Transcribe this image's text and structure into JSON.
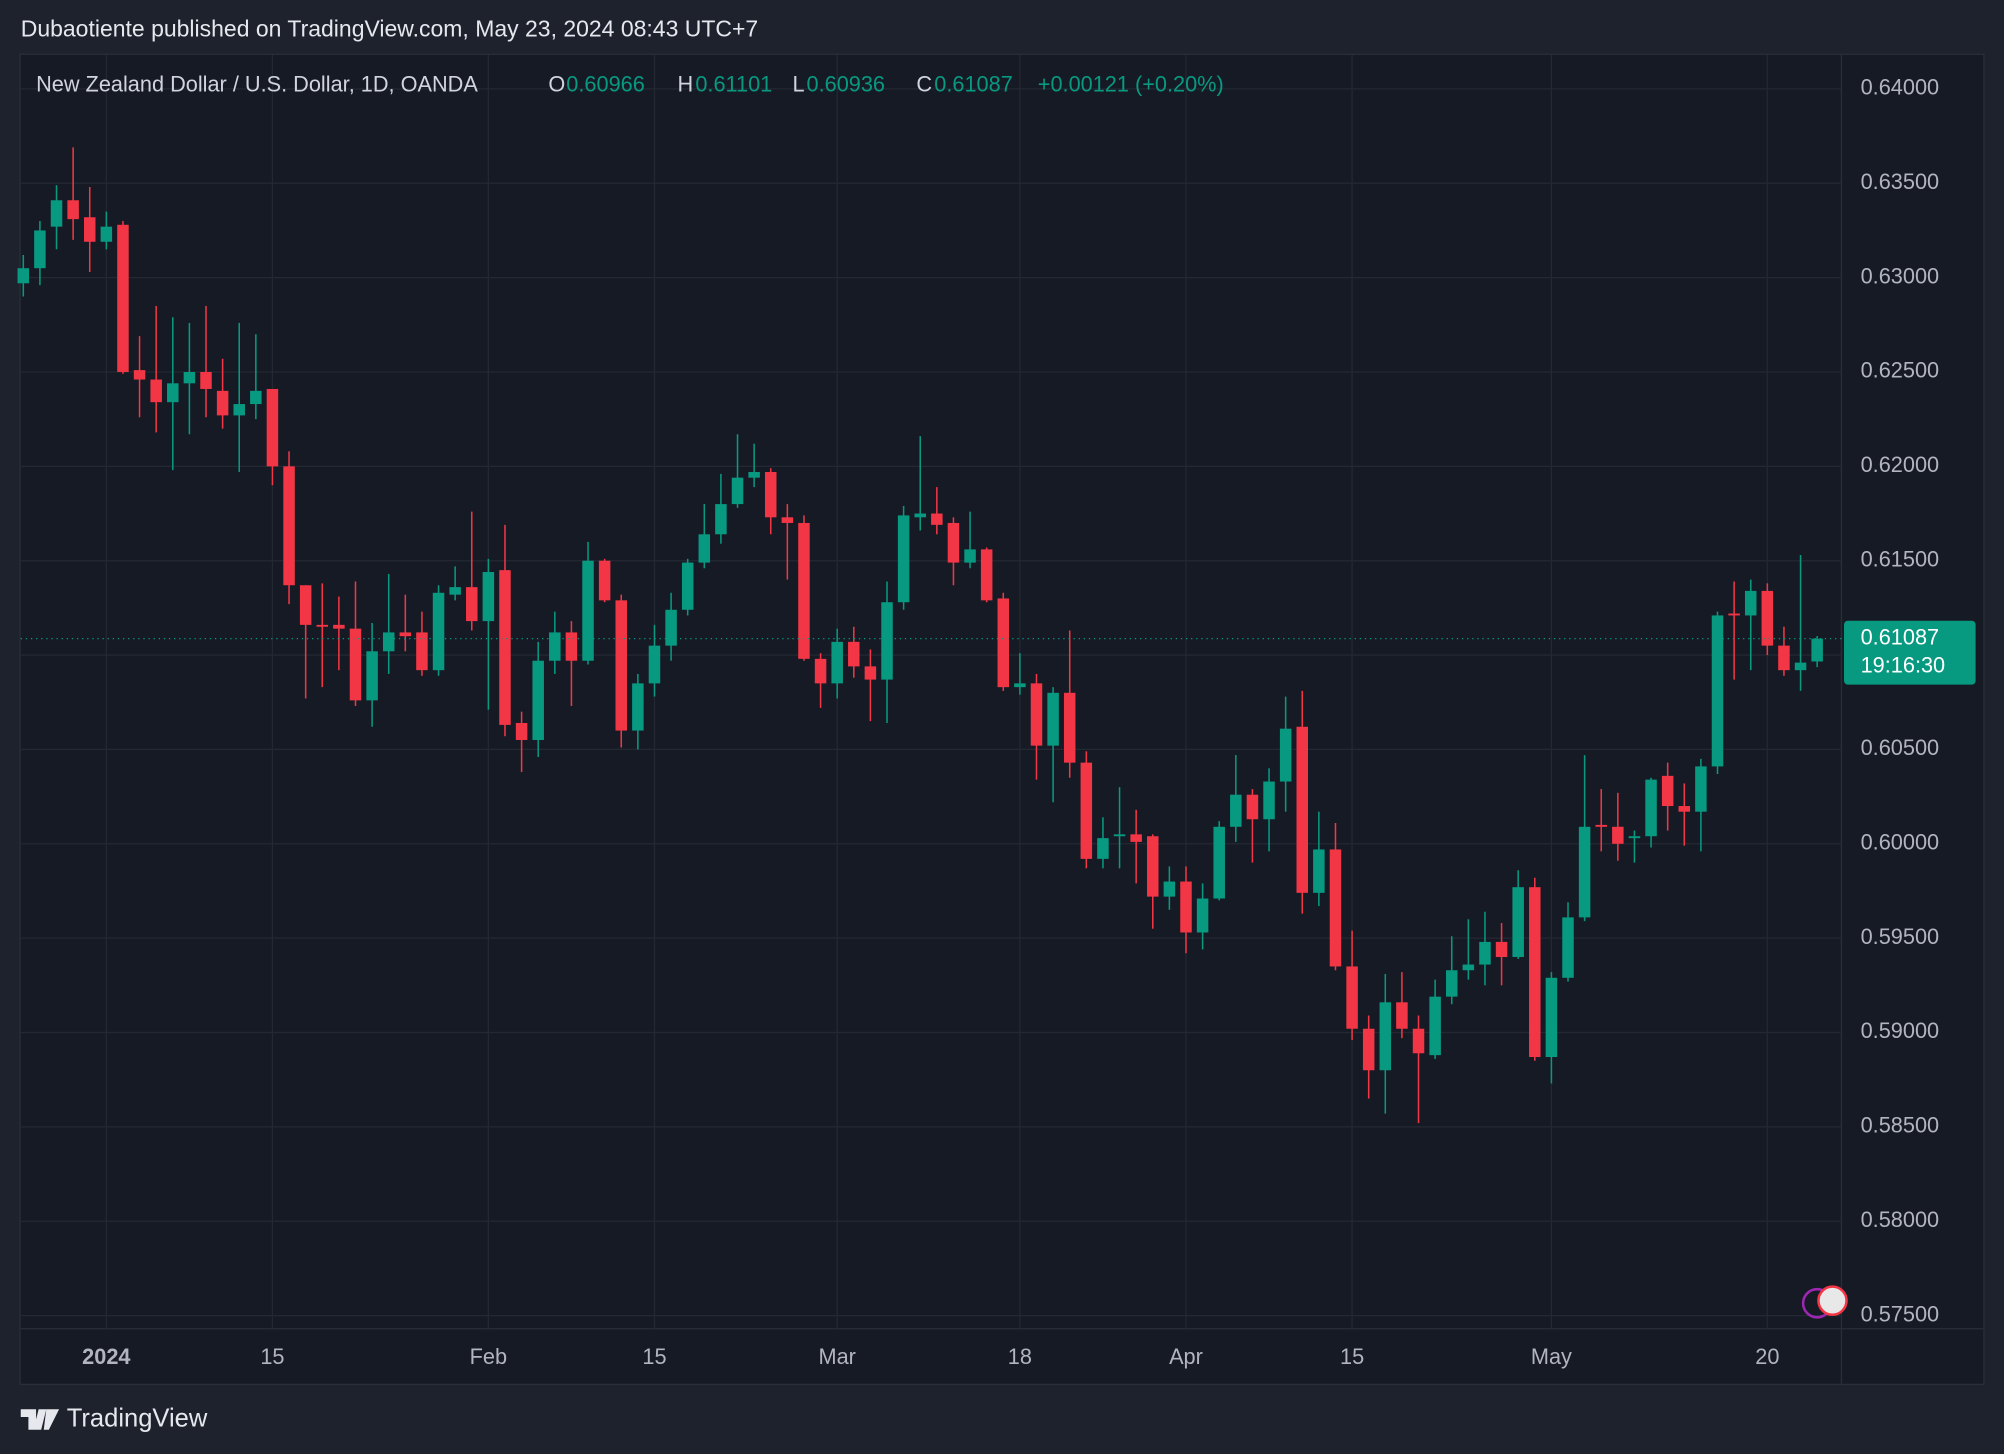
{
  "publisher_line": "Dubaotiente published on TradingView.com, May 23, 2024 08:43 UTC+7",
  "footer": {
    "brand": "TradingView"
  },
  "chart_data": {
    "type": "candlestick",
    "title": "New Zealand Dollar / U.S. Dollar, 1D, OANDA",
    "legend_labels": {
      "open": "O",
      "high": "H",
      "low": "L",
      "close": "C"
    },
    "legend_change": "+0.00121 (+0.20%)",
    "countdown": "19:16:30",
    "up_color": "#089981",
    "down_color": "#f23645",
    "grid": true,
    "ylim": [
      0.5743,
      0.6418
    ],
    "yticks": [
      {
        "value": 0.575,
        "label": "0.57500"
      },
      {
        "value": 0.58,
        "label": "0.58000"
      },
      {
        "value": 0.585,
        "label": "0.58500"
      },
      {
        "value": 0.59,
        "label": "0.59000"
      },
      {
        "value": 0.595,
        "label": "0.59500"
      },
      {
        "value": 0.6,
        "label": "0.60000"
      },
      {
        "value": 0.605,
        "label": "0.60500"
      },
      {
        "value": 0.61,
        "label": "0.61000"
      },
      {
        "value": 0.615,
        "label": "0.61500"
      },
      {
        "value": 0.62,
        "label": "0.62000"
      },
      {
        "value": 0.625,
        "label": "0.62500"
      },
      {
        "value": 0.63,
        "label": "0.63000"
      },
      {
        "value": 0.635,
        "label": "0.63500"
      },
      {
        "value": 0.64,
        "label": "0.64000"
      }
    ],
    "xticks": [
      {
        "value": "2024-01-01",
        "label": "2024"
      },
      {
        "value": "2024-01-15",
        "label": "15"
      },
      {
        "value": "2024-02-01",
        "label": "Feb"
      },
      {
        "value": "2024-02-15",
        "label": "15"
      },
      {
        "value": "2024-03-01",
        "label": "Mar"
      },
      {
        "value": "2024-03-18",
        "label": "18"
      },
      {
        "value": "2024-04-01",
        "label": "Apr"
      },
      {
        "value": "2024-04-15",
        "label": "15"
      },
      {
        "value": "2024-05-01",
        "label": "May"
      },
      {
        "value": "2024-05-20",
        "label": "20"
      }
    ],
    "x": [
      "2023-12-25",
      "2023-12-26",
      "2023-12-27",
      "2023-12-28",
      "2023-12-29",
      "2024-01-01",
      "2024-01-02",
      "2024-01-03",
      "2024-01-04",
      "2024-01-05",
      "2024-01-08",
      "2024-01-09",
      "2024-01-10",
      "2024-01-11",
      "2024-01-12",
      "2024-01-15",
      "2024-01-16",
      "2024-01-17",
      "2024-01-18",
      "2024-01-19",
      "2024-01-22",
      "2024-01-23",
      "2024-01-24",
      "2024-01-25",
      "2024-01-26",
      "2024-01-29",
      "2024-01-30",
      "2024-01-31",
      "2024-02-01",
      "2024-02-02",
      "2024-02-05",
      "2024-02-06",
      "2024-02-07",
      "2024-02-08",
      "2024-02-09",
      "2024-02-12",
      "2024-02-13",
      "2024-02-14",
      "2024-02-15",
      "2024-02-16",
      "2024-02-19",
      "2024-02-20",
      "2024-02-21",
      "2024-02-22",
      "2024-02-23",
      "2024-02-26",
      "2024-02-27",
      "2024-02-28",
      "2024-02-29",
      "2024-03-01",
      "2024-03-04",
      "2024-03-05",
      "2024-03-06",
      "2024-03-07",
      "2024-03-08",
      "2024-03-11",
      "2024-03-12",
      "2024-03-13",
      "2024-03-14",
      "2024-03-15",
      "2024-03-18",
      "2024-03-19",
      "2024-03-20",
      "2024-03-21",
      "2024-03-22",
      "2024-03-25",
      "2024-03-26",
      "2024-03-27",
      "2024-03-28",
      "2024-03-29",
      "2024-04-01",
      "2024-04-02",
      "2024-04-03",
      "2024-04-04",
      "2024-04-05",
      "2024-04-08",
      "2024-04-09",
      "2024-04-10",
      "2024-04-11",
      "2024-04-12",
      "2024-04-15",
      "2024-04-16",
      "2024-04-17",
      "2024-04-18",
      "2024-04-19",
      "2024-04-22",
      "2024-04-23",
      "2024-04-24",
      "2024-04-25",
      "2024-04-26",
      "2024-04-29",
      "2024-04-30",
      "2024-05-01",
      "2024-05-02",
      "2024-05-03",
      "2024-05-06",
      "2024-05-07",
      "2024-05-08",
      "2024-05-09",
      "2024-05-10",
      "2024-05-13",
      "2024-05-14",
      "2024-05-15",
      "2024-05-16",
      "2024-05-17",
      "2024-05-20",
      "2024-05-21",
      "2024-05-22",
      "2024-05-23"
    ],
    "open": [
      0.6297,
      0.6305,
      0.6327,
      0.6341,
      0.6332,
      0.6319,
      0.6328,
      0.6251,
      0.6246,
      0.6234,
      0.6244,
      0.625,
      0.624,
      0.6227,
      0.6233,
      0.6241,
      0.62,
      0.6137,
      0.6116,
      0.6116,
      0.6114,
      0.6076,
      0.6102,
      0.6112,
      0.6112,
      0.6092,
      0.6132,
      0.6136,
      0.6118,
      0.6145,
      0.6064,
      0.6055,
      0.6097,
      0.6112,
      0.6097,
      0.615,
      0.6129,
      0.606,
      0.6085,
      0.6105,
      0.6124,
      0.6149,
      0.6164,
      0.618,
      0.6194,
      0.6197,
      0.6173,
      0.617,
      0.6098,
      0.6085,
      0.6107,
      0.6094,
      0.6087,
      0.6128,
      0.6173,
      0.6175,
      0.617,
      0.6149,
      0.6156,
      0.613,
      0.6083,
      0.6085,
      0.6052,
      0.608,
      0.6043,
      0.5992,
      0.6004,
      0.6005,
      0.6004,
      0.5972,
      0.598,
      0.5953,
      0.5971,
      0.6009,
      0.6026,
      0.6013,
      0.6033,
      0.6062,
      0.5974,
      0.5997,
      0.5935,
      0.5902,
      0.588,
      0.5916,
      0.5902,
      0.5888,
      0.5919,
      0.5933,
      0.5936,
      0.5948,
      0.594,
      0.5977,
      0.5887,
      0.5929,
      0.5961,
      0.601,
      0.6009,
      0.6003,
      0.6004,
      0.6036,
      0.602,
      0.6017,
      0.6041,
      0.6122,
      0.6121,
      0.6134,
      0.6105,
      0.6092,
      0.60966
    ],
    "high": [
      0.6312,
      0.633,
      0.6349,
      0.6369,
      0.6348,
      0.6335,
      0.633,
      0.6269,
      0.6285,
      0.6279,
      0.6276,
      0.6285,
      0.6257,
      0.6276,
      0.627,
      0.6241,
      0.6208,
      0.6137,
      0.6138,
      0.6131,
      0.6139,
      0.6117,
      0.6143,
      0.6132,
      0.6123,
      0.6137,
      0.6147,
      0.6176,
      0.6151,
      0.6169,
      0.607,
      0.6107,
      0.6123,
      0.6118,
      0.616,
      0.6151,
      0.6132,
      0.609,
      0.6116,
      0.6133,
      0.6151,
      0.618,
      0.6196,
      0.6217,
      0.6212,
      0.6199,
      0.618,
      0.6174,
      0.6101,
      0.6114,
      0.6115,
      0.6103,
      0.6139,
      0.6179,
      0.6216,
      0.6189,
      0.6173,
      0.6176,
      0.6157,
      0.6133,
      0.6101,
      0.609,
      0.6083,
      0.6113,
      0.6049,
      0.6014,
      0.603,
      0.6018,
      0.6005,
      0.5988,
      0.5988,
      0.5979,
      0.6012,
      0.6047,
      0.6029,
      0.604,
      0.6078,
      0.6081,
      0.6017,
      0.6011,
      0.5954,
      0.5909,
      0.5931,
      0.5932,
      0.5909,
      0.5928,
      0.5951,
      0.596,
      0.5964,
      0.5958,
      0.5986,
      0.5982,
      0.5932,
      0.5969,
      0.6047,
      0.6029,
      0.6027,
      0.6007,
      0.6035,
      0.6043,
      0.6032,
      0.6045,
      0.6123,
      0.6139,
      0.614,
      0.6138,
      0.6115,
      0.6153,
      0.61101
    ],
    "low": [
      0.629,
      0.6296,
      0.6315,
      0.632,
      0.6303,
      0.6315,
      0.6249,
      0.6226,
      0.6218,
      0.6198,
      0.6217,
      0.6226,
      0.622,
      0.6197,
      0.6225,
      0.619,
      0.6127,
      0.6077,
      0.6083,
      0.6092,
      0.6073,
      0.6062,
      0.609,
      0.6102,
      0.6089,
      0.6089,
      0.6129,
      0.6113,
      0.6071,
      0.6057,
      0.6038,
      0.6046,
      0.609,
      0.6073,
      0.6095,
      0.6128,
      0.6051,
      0.605,
      0.6078,
      0.6097,
      0.6121,
      0.6146,
      0.6159,
      0.6178,
      0.6189,
      0.6164,
      0.614,
      0.6097,
      0.6072,
      0.6077,
      0.6088,
      0.6065,
      0.6064,
      0.6124,
      0.6166,
      0.6164,
      0.6137,
      0.6146,
      0.6128,
      0.6081,
      0.6079,
      0.6034,
      0.6022,
      0.6035,
      0.5987,
      0.5987,
      0.5987,
      0.5979,
      0.5955,
      0.5965,
      0.5942,
      0.5944,
      0.597,
      0.6001,
      0.599,
      0.5996,
      0.6017,
      0.5963,
      0.5967,
      0.5933,
      0.5896,
      0.5865,
      0.5857,
      0.5897,
      0.5852,
      0.5886,
      0.5915,
      0.5928,
      0.5925,
      0.5925,
      0.5939,
      0.5885,
      0.5873,
      0.5927,
      0.5959,
      0.5996,
      0.5991,
      0.599,
      0.5998,
      0.6007,
      0.5999,
      0.5996,
      0.6037,
      0.6087,
      0.6092,
      0.61,
      0.6089,
      0.6081,
      0.60936
    ],
    "close": [
      0.6305,
      0.6325,
      0.6341,
      0.6331,
      0.6319,
      0.6327,
      0.625,
      0.6246,
      0.6234,
      0.6244,
      0.625,
      0.6241,
      0.6227,
      0.6233,
      0.624,
      0.62,
      0.6137,
      0.6116,
      0.6115,
      0.6114,
      0.6076,
      0.6102,
      0.6112,
      0.611,
      0.6092,
      0.6133,
      0.6136,
      0.6118,
      0.6144,
      0.6063,
      0.6055,
      0.6097,
      0.6112,
      0.6097,
      0.615,
      0.6129,
      0.606,
      0.6085,
      0.6105,
      0.6124,
      0.6149,
      0.6164,
      0.618,
      0.6194,
      0.6197,
      0.6173,
      0.617,
      0.6098,
      0.6085,
      0.6107,
      0.6094,
      0.6087,
      0.6128,
      0.6174,
      0.6175,
      0.6169,
      0.6149,
      0.6156,
      0.6129,
      0.6083,
      0.6085,
      0.6052,
      0.608,
      0.6043,
      0.5992,
      0.6003,
      0.6005,
      0.6001,
      0.5972,
      0.598,
      0.5953,
      0.5971,
      0.6009,
      0.6026,
      0.6013,
      0.6033,
      0.6061,
      0.5974,
      0.5997,
      0.5935,
      0.5902,
      0.588,
      0.5916,
      0.5902,
      0.5889,
      0.5919,
      0.5933,
      0.5936,
      0.5948,
      0.594,
      0.5977,
      0.5887,
      0.5929,
      0.5961,
      0.6009,
      0.6009,
      0.6,
      0.6004,
      0.6034,
      0.602,
      0.6017,
      0.6041,
      0.6121,
      0.6121,
      0.6134,
      0.6105,
      0.6092,
      0.6096,
      0.61087
    ]
  }
}
